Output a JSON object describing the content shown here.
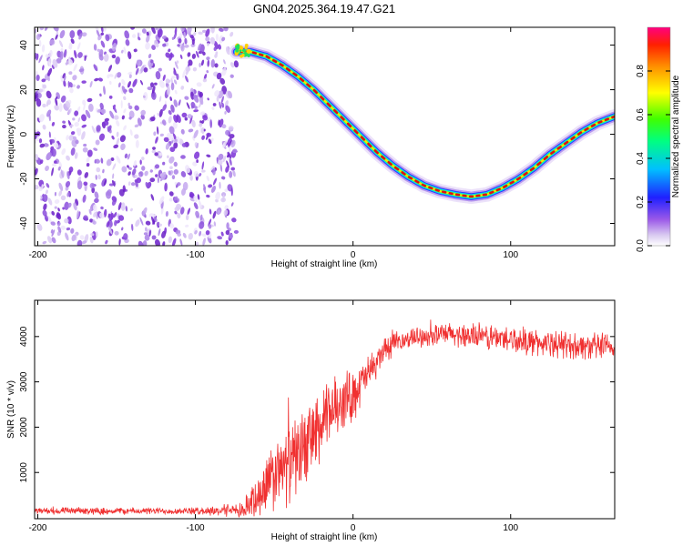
{
  "title": "GN04.2025.364.19.47.G21",
  "chart_data": [
    {
      "type": "heatmap",
      "name": "spectrogram",
      "xlabel": "Height of straight line (km)",
      "ylabel": "Frequency (Hz)",
      "xlim": [
        -202,
        166
      ],
      "ylim": [
        -50,
        48
      ],
      "x_ticks": [
        -200,
        -100,
        0,
        100
      ],
      "y_ticks": [
        40,
        20,
        0,
        -20,
        -40
      ],
      "noise_region_x": [
        -202,
        -74
      ],
      "trace": {
        "x": [
          -74,
          -65,
          -55,
          -45,
          -35,
          -25,
          -15,
          -5,
          5,
          15,
          25,
          35,
          45,
          55,
          65,
          75,
          85,
          95,
          105,
          115,
          125,
          135,
          145,
          155,
          166
        ],
        "y": [
          37,
          37,
          35,
          31,
          26,
          20,
          13,
          6,
          -1,
          -8,
          -14,
          -19,
          -23,
          -25.5,
          -27,
          -28,
          -27,
          -24,
          -20,
          -15,
          -9,
          -4,
          1,
          5,
          8
        ]
      },
      "colorbar": {
        "label": "Normalized spectral amplitude",
        "range": [
          0,
          1
        ],
        "ticks": [
          "0.0",
          "0.2",
          "0.4",
          "0.6",
          "0.8"
        ],
        "tick_values": [
          0.0,
          0.2,
          0.4,
          0.6,
          0.8
        ]
      }
    },
    {
      "type": "line",
      "name": "snr",
      "xlabel": "Height of straight line (km)",
      "ylabel": "SNR (10 * v/v)",
      "xlim": [
        -202,
        166
      ],
      "ylim": [
        -20,
        4800
      ],
      "x_ticks": [
        -200,
        -100,
        0,
        100
      ],
      "y_ticks": [
        1000,
        2000,
        3000,
        4000
      ],
      "color": "#f03030",
      "envelope": {
        "x": [
          -202,
          -100,
          -70,
          -60,
          -50,
          -40,
          -30,
          -20,
          -10,
          0,
          10,
          20,
          30,
          40,
          60,
          80,
          100,
          120,
          140,
          166
        ],
        "mean": [
          150,
          150,
          160,
          500,
          900,
          1200,
          1600,
          2000,
          2500,
          2700,
          3200,
          3700,
          3900,
          4000,
          4050,
          4000,
          3950,
          3850,
          3800,
          3750
        ],
        "spread": [
          90,
          90,
          200,
          700,
          900,
          1000,
          1000,
          1000,
          800,
          700,
          450,
          350,
          250,
          250,
          300,
          350,
          350,
          350,
          350,
          350
        ]
      }
    }
  ]
}
